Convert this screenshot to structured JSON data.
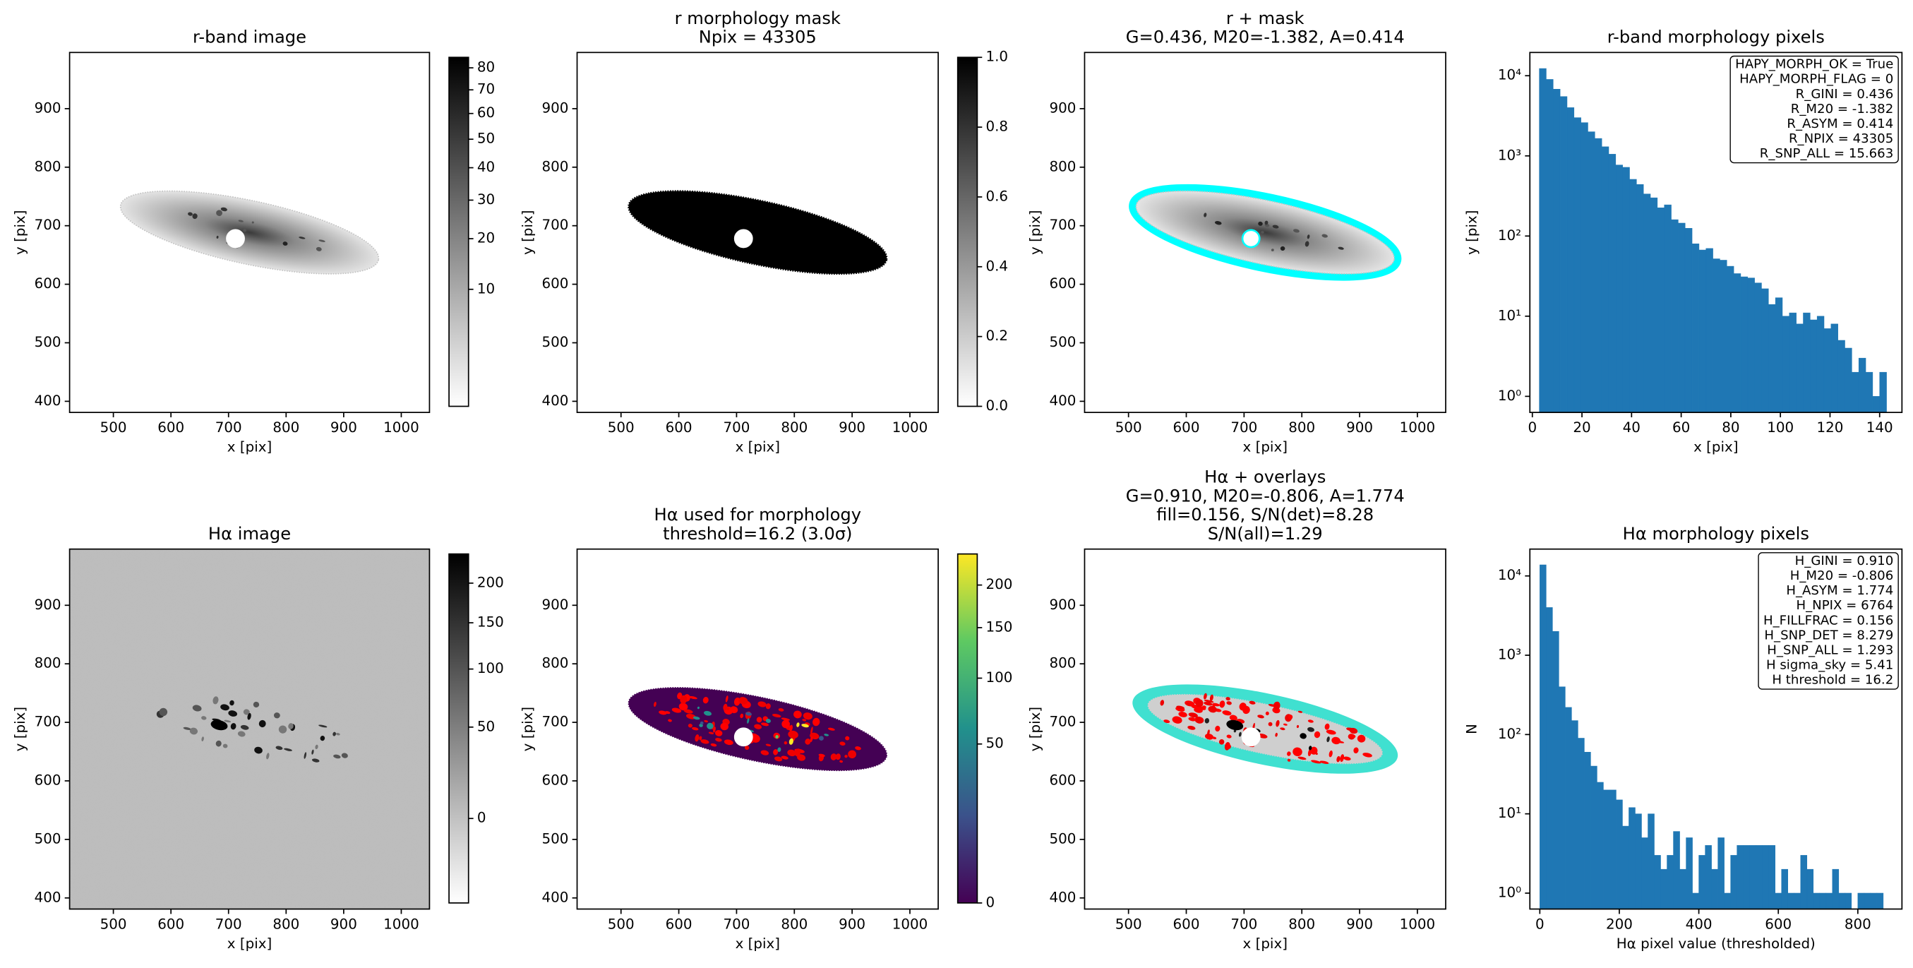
{
  "chart_data": [
    {
      "type": "image",
      "title": [
        "r-band image"
      ],
      "xlabel": "x [pix]",
      "ylabel": "y [pix]",
      "xlim": [
        424,
        1049
      ],
      "ylim": [
        381,
        996
      ],
      "xticks": [
        500,
        600,
        700,
        800,
        900,
        1000
      ],
      "yticks": [
        400,
        500,
        600,
        700,
        800,
        900
      ],
      "content": "r",
      "colormap": "gray_r",
      "overlay_colors": [],
      "marker_x": 712,
      "marker_y": 678,
      "colorbar": {
        "clim": [
          0.5,
          85
        ],
        "stretch": "sqrt",
        "ticks": [
          10,
          20,
          30,
          40,
          50,
          60,
          70,
          80
        ]
      }
    },
    {
      "type": "image",
      "title": [
        "r morphology mask",
        "Npix = 43305"
      ],
      "xlabel": "x [pix]",
      "ylabel": "y [pix]",
      "xlim": [
        424,
        1049
      ],
      "ylim": [
        381,
        996
      ],
      "xticks": [
        500,
        600,
        700,
        800,
        900,
        1000
      ],
      "yticks": [
        400,
        500,
        600,
        700,
        800,
        900
      ],
      "content": "mask",
      "colormap": "gray_r",
      "overlay_colors": [],
      "marker_x": 712,
      "marker_y": 678,
      "colorbar": {
        "clim": [
          0,
          1
        ],
        "stretch": "linear",
        "ticks": [
          {
            "value": 0,
            "label": "0.0"
          },
          0.2,
          0.4,
          0.6,
          0.8,
          {
            "value": 1,
            "label": "1.0"
          }
        ]
      }
    },
    {
      "type": "image",
      "title": [
        "r + mask",
        "G=0.436, M20=-1.382, A=0.414"
      ],
      "xlabel": "x [pix]",
      "ylabel": "y [pix]",
      "xlim": [
        424,
        1049
      ],
      "ylim": [
        381,
        996
      ],
      "xticks": [
        500,
        600,
        700,
        800,
        900,
        1000
      ],
      "yticks": [
        400,
        500,
        600,
        700,
        800,
        900
      ],
      "content": "r",
      "colormap": "gray_r",
      "overlay_colors": [
        "cyan"
      ],
      "marker_x": 712,
      "marker_y": 678
    },
    {
      "type": "hist",
      "title": [
        "r-band morphology pixels"
      ],
      "xlabel": "x [pix]",
      "ylabel": "y [pix]",
      "color": "#1f77b4",
      "log_y": true,
      "xlim": [
        -1,
        149
      ],
      "ylim": [
        0.63,
        19500
      ],
      "xticks": [
        0,
        20,
        40,
        60,
        80,
        100,
        120,
        140
      ],
      "yticks": [
        {
          "value": 1,
          "label": "10⁰"
        },
        {
          "value": 10,
          "label": "10¹"
        },
        {
          "value": 100,
          "label": "10²"
        },
        {
          "value": 1000,
          "label": "10³"
        },
        {
          "value": 10000,
          "label": "10⁴"
        }
      ],
      "bins": [
        2.8,
        5.6,
        8.4,
        11.2,
        14,
        16.8,
        19.6,
        22.4,
        25.2,
        28,
        30.8,
        33.6,
        36.4,
        39.2,
        42,
        44.8,
        47.6,
        50.4,
        53.2,
        56,
        58.8,
        61.6,
        64.4,
        67.2,
        70,
        72.8,
        75.6,
        78.4,
        81.2,
        84,
        86.8,
        89.6,
        92.4,
        95.2,
        98,
        100.8,
        103.6,
        106.4,
        109.2,
        112,
        114.8,
        117.6,
        120.4,
        123.2,
        126,
        128.8,
        131.6,
        134.4,
        137.2,
        140,
        142.8
      ],
      "counts": [
        12300,
        9000,
        6800,
        5500,
        4000,
        3000,
        2600,
        2000,
        1650,
        1300,
        1050,
        770,
        720,
        510,
        440,
        335,
        300,
        225,
        245,
        160,
        145,
        125,
        80,
        67,
        70,
        52,
        50,
        42,
        34,
        31,
        30,
        26,
        22,
        14,
        17,
        10,
        11,
        8,
        11,
        9,
        10,
        7,
        8,
        5,
        4,
        2,
        3,
        2,
        1,
        2
      ],
      "annotation_lines": [
        "HAPY_MORPH_OK = True",
        "HAPY_MORPH_FLAG = 0",
        "R_GINI = 0.436",
        "R_M20 = -1.382",
        "R_ASYM = 0.414",
        "R_NPIX = 43305",
        "R_SNP_ALL = 15.663"
      ]
    },
    {
      "type": "image",
      "title": [
        "Hα image"
      ],
      "xlabel": "x [pix]",
      "ylabel": "y [pix]",
      "xlim": [
        424,
        1049
      ],
      "ylim": [
        381,
        996
      ],
      "xticks": [
        500,
        600,
        700,
        800,
        900,
        1000
      ],
      "yticks": [
        400,
        500,
        600,
        700,
        800,
        900
      ],
      "content": "halpha",
      "colormap": "gray_r",
      "overlay_colors": [],
      "colorbar": {
        "clim": [
          -15,
          241
        ],
        "stretch": "sqrt",
        "ticks": [
          0,
          50,
          100,
          150,
          200
        ]
      }
    },
    {
      "type": "image",
      "title": [
        "Hα used for morphology",
        "threshold=16.2 (3.0σ)"
      ],
      "xlabel": "x [pix]",
      "ylabel": "y [pix]",
      "xlim": [
        424,
        1049
      ],
      "ylim": [
        381,
        996
      ],
      "xticks": [
        500,
        600,
        700,
        800,
        900,
        1000
      ],
      "yticks": [
        400,
        500,
        600,
        700,
        800,
        900
      ],
      "content": "halpha_masked",
      "colormap": "viridis",
      "overlay_colors": [
        "red"
      ],
      "marker_x": 712,
      "marker_y": 675,
      "colorbar": {
        "clim": [
          0,
          241
        ],
        "stretch": "sqrt",
        "ticks": [
          0,
          50,
          100,
          150,
          200
        ]
      }
    },
    {
      "type": "image",
      "title": [
        "Hα + overlays",
        "G=0.910, M20=-0.806, A=1.774",
        "fill=0.156, S/N(det)=8.28",
        "S/N(all)=1.29"
      ],
      "xlabel": "x [pix]",
      "ylabel": "y [pix]",
      "xlim": [
        424,
        1049
      ],
      "ylim": [
        381,
        996
      ],
      "xticks": [
        500,
        600,
        700,
        800,
        900,
        1000
      ],
      "yticks": [
        400,
        500,
        600,
        700,
        800,
        900
      ],
      "content": "halpha_masked",
      "colormap": "gray_r",
      "overlay_colors": [
        "turquoise",
        "red"
      ],
      "marker_x": 712,
      "marker_y": 675
    },
    {
      "type": "hist",
      "title": [
        "Hα morphology pixels"
      ],
      "xlabel": "Hα pixel value (thresholded)",
      "ylabel": "N",
      "color": "#1f77b4",
      "log_y": true,
      "xlim": [
        -25,
        911
      ],
      "ylim": [
        0.63,
        21800
      ],
      "xticks": [
        0,
        200,
        400,
        600,
        800
      ],
      "yticks": [
        {
          "value": 1,
          "label": "10⁰"
        },
        {
          "value": 10,
          "label": "10¹"
        },
        {
          "value": 100,
          "label": "10²"
        },
        {
          "value": 1000,
          "label": "10³"
        },
        {
          "value": 10000,
          "label": "10⁴"
        }
      ],
      "bins": [
        0,
        16,
        32,
        48,
        64,
        80,
        96,
        112,
        128,
        144,
        160,
        176,
        192,
        208,
        224,
        240,
        256,
        272,
        288,
        304,
        320,
        336,
        352,
        368,
        384,
        400,
        416,
        432,
        448,
        464,
        480,
        496,
        512,
        528,
        544,
        560,
        576,
        592,
        608,
        624,
        640,
        656,
        672,
        688,
        704,
        720,
        736,
        752,
        768,
        784,
        800,
        816,
        832,
        848,
        864
      ],
      "counts": [
        13800,
        4000,
        2000,
        400,
        220,
        150,
        90,
        60,
        40,
        25,
        20,
        20,
        15,
        7,
        12,
        10,
        5,
        10,
        3,
        2,
        3,
        6,
        2,
        5,
        1,
        3,
        4,
        2,
        5,
        1,
        3,
        4,
        4,
        4,
        4,
        4,
        4,
        1,
        2,
        1,
        1,
        3,
        2,
        1,
        1,
        1,
        2,
        1,
        1,
        0,
        1,
        1,
        1,
        1
      ],
      "annotation_lines": [
        "H_GINI = 0.910",
        "H_M20 = -0.806",
        "H_ASYM = 1.774",
        "H_NPIX = 6764",
        "H_FILLFRAC = 0.156",
        "H_SNP_DET = 8.279",
        "H_SNP_ALL = 1.293",
        "H sigma_sky = 5.41",
        "H threshold = 16.2"
      ]
    }
  ]
}
